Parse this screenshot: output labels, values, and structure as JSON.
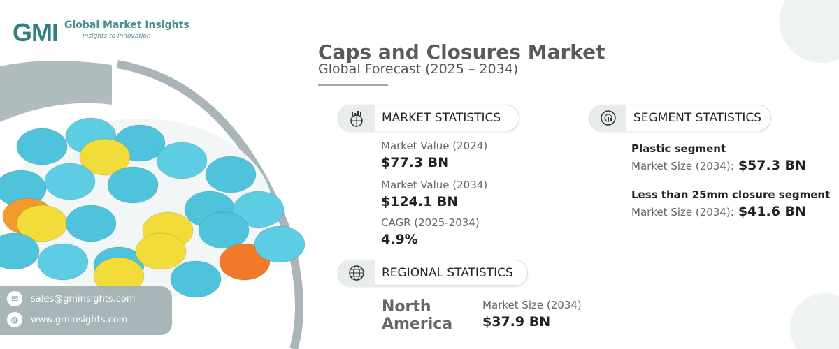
{
  "brand": {
    "logo_mark": "GMI",
    "name": "Global Market Insights",
    "tagline": "Insights to Innovation"
  },
  "header": {
    "title": "Caps and Closures Market",
    "subtitle": "Global Forecast (2025 – 2034)"
  },
  "market_statistics": {
    "heading": "MARKET STATISTICS",
    "icon": "chart-globe-icon",
    "items": [
      {
        "label": "Market Value (2024)",
        "value": "$77.3 BN"
      },
      {
        "label": "Market Value (2034)",
        "value": "$124.1 BN"
      },
      {
        "label": "CAGR (2025-2034)",
        "value": "4.9%"
      }
    ]
  },
  "segment_statistics": {
    "heading": "SEGMENT STATISTICS",
    "icon": "target-chart-icon",
    "items": [
      {
        "name": "Plastic segment",
        "label": "Market Size (2034):",
        "value": "$57.3 BN"
      },
      {
        "name": "Less than 25mm closure segment",
        "label": "Market Size (2034):",
        "value": "$41.6 BN"
      }
    ]
  },
  "regional_statistics": {
    "heading": "REGIONAL STATISTICS",
    "icon": "globe-icon",
    "region_line1": "North",
    "region_line2": "America",
    "label": "Market Size (2034)",
    "value": "$37.9 BN"
  },
  "contact": {
    "email": "sales@gminsights.com",
    "website": "www.gminsights.com"
  },
  "colors": {
    "accent": "#2f7f86",
    "gray_arc": "#a9b5b8"
  }
}
